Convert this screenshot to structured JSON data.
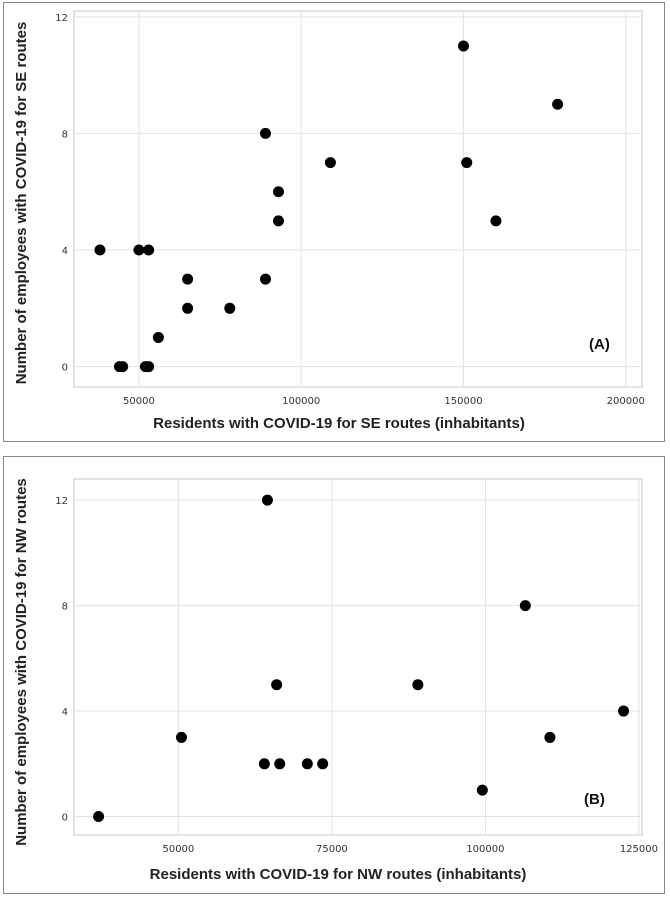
{
  "chart_data": [
    {
      "type": "scatter",
      "panel_label": "(A)",
      "xlabel": "Residents with COVID-19 for SE routes (inhabitants)",
      "ylabel": "Number of employees with COVID-19 for SE routes",
      "xlim": [
        30000,
        205000
      ],
      "ylim": [
        -0.7,
        12.2
      ],
      "xticks": [
        50000,
        100000,
        150000,
        200000
      ],
      "yticks": [
        0,
        4,
        8,
        12
      ],
      "x": [
        38000,
        44000,
        45000,
        50000,
        52000,
        53000,
        53000,
        56000,
        65000,
        65000,
        78000,
        89000,
        89000,
        93000,
        93000,
        109000,
        150000,
        151000,
        160000,
        179000
      ],
      "y": [
        4,
        0,
        0,
        4,
        0,
        4,
        0,
        1,
        2,
        3,
        2,
        3,
        8,
        6,
        5,
        7,
        11,
        7,
        5,
        9
      ]
    },
    {
      "type": "scatter",
      "panel_label": "(B)",
      "xlabel": "Residents with COVID-19 for NW routes (inhabitants)",
      "ylabel": "Number of employees with COVID-19 for NW routes",
      "xlim": [
        33000,
        125500
      ],
      "ylim": [
        -0.7,
        12.8
      ],
      "xticks": [
        50000,
        75000,
        100000,
        125000
      ],
      "yticks": [
        0,
        4,
        8,
        12
      ],
      "x": [
        37000,
        50500,
        64000,
        64500,
        66000,
        66500,
        71000,
        73500,
        89000,
        99500,
        106500,
        110500,
        122500
      ],
      "y": [
        0,
        3,
        2,
        12,
        5,
        2,
        2,
        2,
        5,
        1,
        8,
        3,
        4
      ]
    }
  ]
}
